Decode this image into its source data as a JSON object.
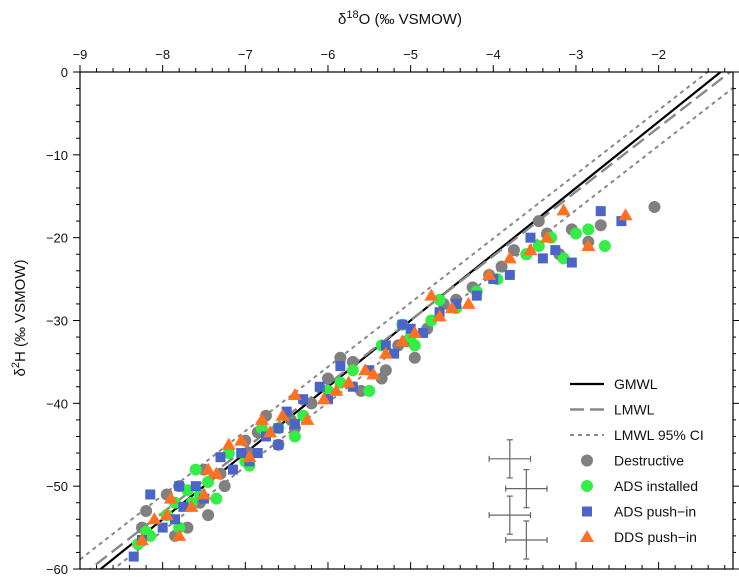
{
  "chart_data": {
    "type": "scatter",
    "xlabel": "δ18O (‰ VSMOW)",
    "xlabel_parts": {
      "delta": "δ",
      "sup": "18",
      "rest": "O (‰ VSMOW)"
    },
    "ylabel": "δ2H (‰ VSMOW)",
    "ylabel_parts": {
      "delta": "δ",
      "sup": "2",
      "rest": "H (‰ VSMOW)"
    },
    "xlim": [
      -9,
      -1.1
    ],
    "ylim": [
      -60,
      0
    ],
    "x_axis_position": "top",
    "x_ticks": [
      -9,
      -8,
      -7,
      -6,
      -5,
      -4,
      -3,
      -2
    ],
    "x_tick_labels": [
      "−9",
      "−8",
      "−7",
      "−6",
      "−5",
      "−4",
      "−3",
      "−2"
    ],
    "y_ticks": [
      0,
      -10,
      -20,
      -30,
      -40,
      -50,
      -60
    ],
    "y_tick_labels": [
      "0",
      "−10",
      "−20",
      "−30",
      "−40",
      "−50",
      "−60"
    ],
    "grid": false,
    "legend_position": "bottom-right",
    "lines": [
      {
        "name": "GMWL",
        "style": "solid",
        "color": "#000000",
        "slope": 8,
        "intercept": 10
      },
      {
        "name": "LMWL",
        "style": "dashed",
        "color": "#888888",
        "slope": 7.75,
        "intercept": 8.8
      },
      {
        "name": "LMWL 95% CI",
        "style": "dotted",
        "color": "#888888",
        "slope": 7.75,
        "intercept": 10.9
      },
      {
        "name": "LMWL 95% CI",
        "style": "dotted",
        "color": "#888888",
        "slope": 7.75,
        "intercept": 6.6
      }
    ],
    "legend": [
      {
        "label": "GMWL",
        "kind": "solid"
      },
      {
        "label": "LMWL",
        "kind": "dashed"
      },
      {
        "label": "LMWL 95% CI",
        "kind": "dotted"
      },
      {
        "label": "Destructive",
        "kind": "circle",
        "color": "#808080"
      },
      {
        "label": "ADS installed",
        "kind": "circle",
        "color": "#33ee44"
      },
      {
        "label": "ADS push−in",
        "kind": "square",
        "color": "#4a64c8"
      },
      {
        "label": "DDS push−in",
        "kind": "triangle",
        "color": "#ff7020"
      }
    ],
    "error_bars": [
      {
        "x": -3.8,
        "y": -46.7,
        "xerr": 0.25,
        "yerr": 2.3
      },
      {
        "x": -3.6,
        "y": -50.3,
        "xerr": 0.25,
        "yerr": 2.3
      },
      {
        "x": -3.8,
        "y": -53.5,
        "xerr": 0.25,
        "yerr": 2.3
      },
      {
        "x": -3.6,
        "y": -56.5,
        "xerr": 0.25,
        "yerr": 2.3
      }
    ],
    "series": [
      {
        "name": "Destructive",
        "marker": "circle",
        "color": "#808080",
        "x": [
          -8.2,
          -7.95,
          -7.85,
          -7.7,
          -7.5,
          -7.55,
          -7.45,
          -7.3,
          -7.25,
          -7.0,
          -6.95,
          -6.85,
          -6.75,
          -6.6,
          -6.45,
          -6.4,
          -6.2,
          -6.0,
          -5.85,
          -5.7,
          -5.6,
          -5.35,
          -5.3,
          -5.15,
          -5.05,
          -4.95,
          -4.8,
          -4.6,
          -4.45,
          -4.25,
          -4.05,
          -3.9,
          -3.75,
          -3.6,
          -3.45,
          -3.35,
          -3.2,
          -3.05,
          -2.85,
          -2.7,
          -2.05,
          -8.25,
          -7.8
        ],
        "y": [
          -53,
          -51,
          -56,
          -55,
          -48,
          -52,
          -53.5,
          -48.5,
          -50,
          -44.5,
          -46,
          -43.5,
          -41.5,
          -45,
          -42,
          -43,
          -40,
          -37,
          -34.5,
          -35,
          -38.5,
          -37,
          -36,
          -33,
          -32.5,
          -34.5,
          -31,
          -28,
          -27.5,
          -26,
          -24.5,
          -23.5,
          -21.5,
          -22,
          -18,
          -19.5,
          -22,
          -19,
          -20.5,
          -18.5,
          -16.3,
          -55,
          -50
        ]
      },
      {
        "name": "ADS installed",
        "marker": "circle",
        "color": "#33ee44",
        "x": [
          -8.3,
          -8.2,
          -8.15,
          -7.95,
          -7.85,
          -7.7,
          -7.65,
          -7.55,
          -7.45,
          -7.35,
          -7.2,
          -7.0,
          -6.95,
          -6.8,
          -6.6,
          -6.4,
          -6.3,
          -6.0,
          -5.85,
          -5.7,
          -5.5,
          -5.35,
          -5.1,
          -5.0,
          -4.95,
          -4.75,
          -4.65,
          -4.45,
          -4.2,
          -3.95,
          -3.6,
          -3.45,
          -3.3,
          -3.15,
          -3.0,
          -2.85,
          -2.65,
          -7.8,
          -7.6
        ],
        "y": [
          -57,
          -55.5,
          -56,
          -53.5,
          -52,
          -50.5,
          -52,
          -51,
          -49.5,
          -51.5,
          -46,
          -47,
          -47.5,
          -43,
          -43,
          -44,
          -41.5,
          -38.5,
          -37.5,
          -36,
          -38.5,
          -33,
          -30.5,
          -32,
          -33,
          -30,
          -27.5,
          -28.5,
          -26.5,
          -25,
          -22,
          -21,
          -20,
          -22.5,
          -19.5,
          -19,
          -21,
          -55,
          -48
        ]
      },
      {
        "name": "ADS push−in",
        "marker": "square",
        "color": "#4a64c8",
        "x": [
          -8.35,
          -8.25,
          -8.15,
          -8.0,
          -7.85,
          -7.75,
          -7.6,
          -7.5,
          -7.3,
          -7.15,
          -7.05,
          -6.95,
          -6.85,
          -6.75,
          -6.6,
          -6.5,
          -6.4,
          -6.3,
          -6.1,
          -6.0,
          -5.85,
          -5.7,
          -5.5,
          -5.3,
          -5.2,
          -5.1,
          -5.0,
          -4.85,
          -4.65,
          -4.45,
          -4.2,
          -4.0,
          -3.8,
          -3.55,
          -3.4,
          -3.25,
          -3.05,
          -2.7,
          -2.45,
          -7.8,
          -6.6
        ],
        "y": [
          -58.5,
          -56.5,
          -51,
          -55,
          -54,
          -52.5,
          -50,
          -51.5,
          -46.5,
          -48,
          -46,
          -47,
          -46,
          -44,
          -45,
          -41,
          -42.5,
          -39.5,
          -38,
          -39.5,
          -35.5,
          -38,
          -36,
          -33,
          -34,
          -30.5,
          -31,
          -31.5,
          -29,
          -28,
          -27,
          -25,
          -24.5,
          -20,
          -22.5,
          -21.5,
          -23,
          -16.8,
          -18,
          -50,
          -43
        ]
      },
      {
        "name": "DDS push−in",
        "marker": "triangle",
        "color": "#ff7020",
        "x": [
          -8.25,
          -8.1,
          -7.95,
          -7.8,
          -7.65,
          -7.5,
          -7.35,
          -7.2,
          -7.05,
          -6.95,
          -6.8,
          -6.7,
          -6.55,
          -6.4,
          -6.25,
          -6.05,
          -5.9,
          -5.75,
          -5.55,
          -5.45,
          -5.3,
          -5.1,
          -4.95,
          -4.75,
          -4.65,
          -4.5,
          -4.3,
          -4.05,
          -3.8,
          -3.55,
          -3.35,
          -3.15,
          -2.85,
          -2.4,
          -7.9,
          -7.45
        ],
        "y": [
          -56.5,
          -54,
          -53.5,
          -56,
          -52.5,
          -51,
          -48.5,
          -45,
          -44.5,
          -46.5,
          -42,
          -43.5,
          -41.5,
          -39,
          -42,
          -39.5,
          -38.5,
          -37.5,
          -36,
          -36.5,
          -34,
          -32.5,
          -31.5,
          -27,
          -29.5,
          -28.5,
          -28,
          -24.5,
          -22.5,
          -21.5,
          -20,
          -16.7,
          -21,
          -17.3,
          -51.5,
          -48
        ]
      }
    ]
  }
}
